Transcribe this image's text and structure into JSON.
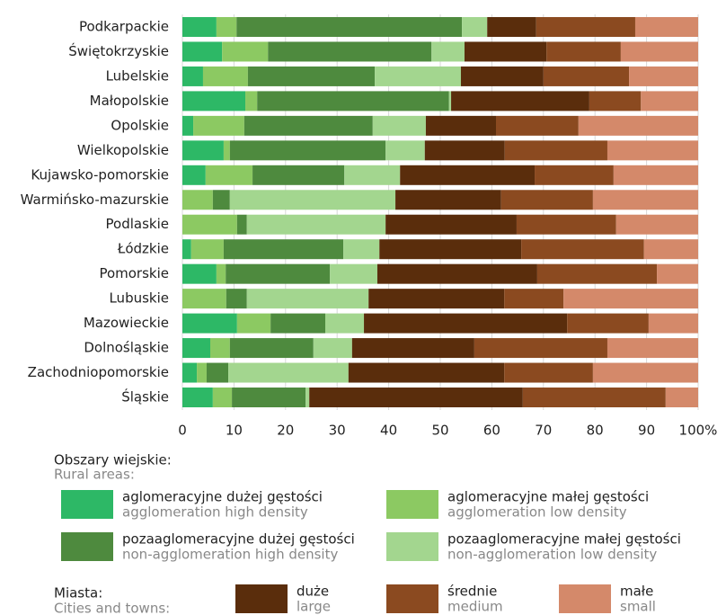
{
  "chart_data": {
    "type": "stacked_barh",
    "categories": [
      "Podkarpackie",
      "Świętokrzyskie",
      "Lubelskie",
      "Małopolskie",
      "Opolskie",
      "Wielkopolskie",
      "Kujawsko-pomorskie",
      "Warmińsko-mazurskie",
      "Podlaskie",
      "Łódzkie",
      "Pomorskie",
      "Lubuskie",
      "Mazowieckie",
      "Dolnośląskie",
      "Zachodniopomorskie",
      "Śląskie"
    ],
    "series": [
      {
        "name": "aglomeracyjne dużej gęstości",
        "name_en": "agglomeration high density",
        "color": "#2db866",
        "values": [
          6.6,
          7.7,
          4.0,
          12.2,
          2.1,
          8.0,
          4.5,
          0,
          0,
          1.7,
          6.6,
          0,
          10.6,
          5.4,
          2.8,
          5.9
        ]
      },
      {
        "name": "aglomeracyjne małej gęstości",
        "name_en": "agglomeration low density",
        "color": "#8cc962",
        "values": [
          3.9,
          8.9,
          8.7,
          2.3,
          9.9,
          1.2,
          9.1,
          5.9,
          10.6,
          6.3,
          1.8,
          8.5,
          6.5,
          3.8,
          1.9,
          3.7
        ]
      },
      {
        "name": "pozaaglomeracyjne dużej gęstości",
        "name_en": "non-agglomeration high density",
        "color": "#4e8a3e",
        "values": [
          43.7,
          31.7,
          24.6,
          37.2,
          24.9,
          30.2,
          17.8,
          3.3,
          1.9,
          23.2,
          20.2,
          4.0,
          10.6,
          16.2,
          4.2,
          14.3
        ]
      },
      {
        "name": "pozaaglomeracyjne małej gęstości",
        "name_en": "non-agglomeration low density",
        "color": "#a3d68f",
        "values": [
          4.9,
          6.4,
          16.7,
          0.4,
          10.3,
          7.6,
          10.8,
          32.1,
          26.9,
          7.0,
          9.2,
          23.6,
          7.5,
          7.5,
          23.3,
          0.7
        ]
      },
      {
        "name": "duże",
        "name_en": "large",
        "color": "#5a2d0c",
        "values": [
          9.5,
          15.9,
          16.0,
          26.8,
          13.6,
          15.5,
          26.1,
          20.5,
          25.4,
          27.5,
          31.0,
          26.3,
          39.4,
          23.7,
          30.2,
          41.4
        ]
      },
      {
        "name": "średnie",
        "name_en": "medium",
        "color": "#8b4a20",
        "values": [
          19.2,
          14.4,
          16.6,
          10.0,
          16.0,
          19.9,
          15.3,
          17.8,
          19.3,
          23.8,
          23.2,
          11.5,
          15.8,
          25.8,
          17.2,
          27.7
        ]
      },
      {
        "name": "małe",
        "name_en": "small",
        "color": "#d4896a",
        "values": [
          12.2,
          15.0,
          13.4,
          11.1,
          23.2,
          17.6,
          16.4,
          20.4,
          15.9,
          10.5,
          8.0,
          26.1,
          9.6,
          17.6,
          20.4,
          6.3
        ]
      }
    ],
    "xlim": [
      0,
      100
    ],
    "xticks": [
      0,
      10,
      20,
      30,
      40,
      50,
      60,
      70,
      80,
      90,
      {
        "value": 100,
        "label": "100%"
      }
    ],
    "grid": true,
    "legend_groups": [
      {
        "title": "Obszary wiejskie:",
        "title_en": "Rural areas:"
      },
      {
        "title": "Miasta:",
        "title_en": "Cities and towns:"
      }
    ]
  }
}
